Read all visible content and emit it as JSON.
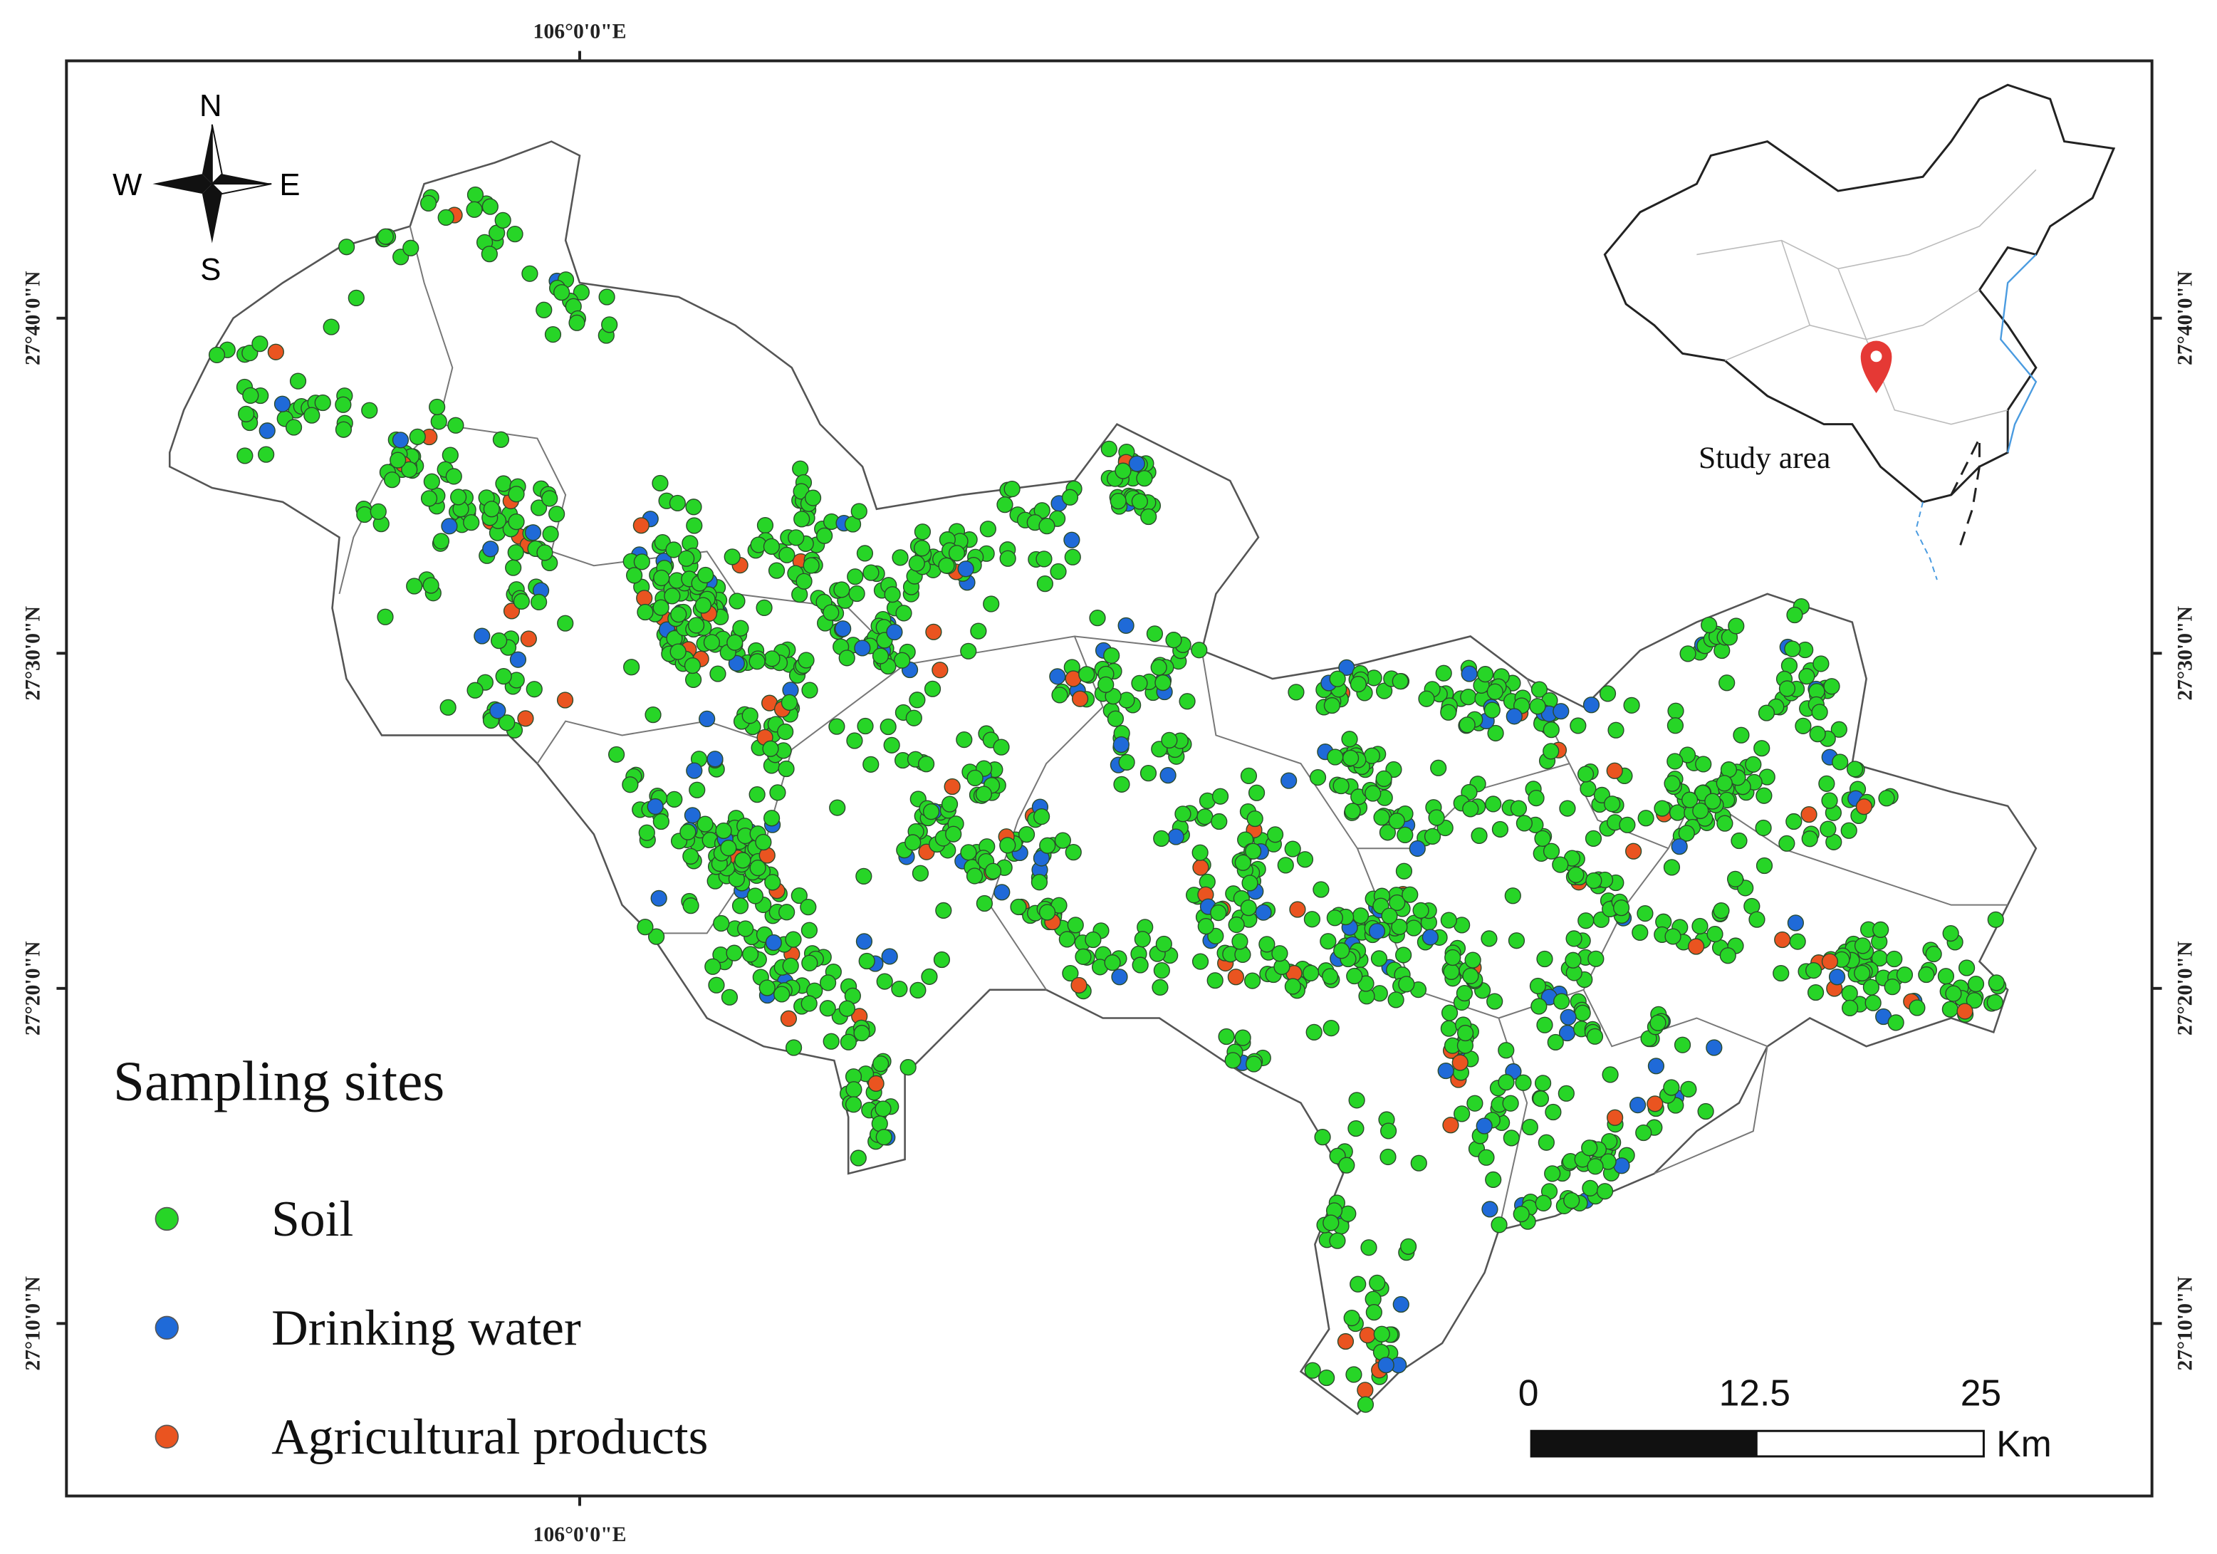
{
  "map": {
    "graticule": {
      "longitude": "106°0'0\"E",
      "latitudes": [
        "27°40'0\"N",
        "27°30'0\"N",
        "27°20'0\"N",
        "27°10'0\"N"
      ]
    },
    "compass": {
      "north": "N",
      "south": "S",
      "west": "W",
      "east": "E"
    },
    "inset": {
      "label": "Study area"
    },
    "legend": {
      "title": "Sampling sites",
      "items": [
        {
          "label": "Soil",
          "color": "#27d527"
        },
        {
          "label": "Drinking water",
          "color": "#1f6ad8"
        },
        {
          "label": "Agricultural products",
          "color": "#ea5420"
        }
      ]
    },
    "scale_bar": {
      "ticks": [
        0,
        12.5,
        25
      ],
      "unit": "Km"
    }
  }
}
